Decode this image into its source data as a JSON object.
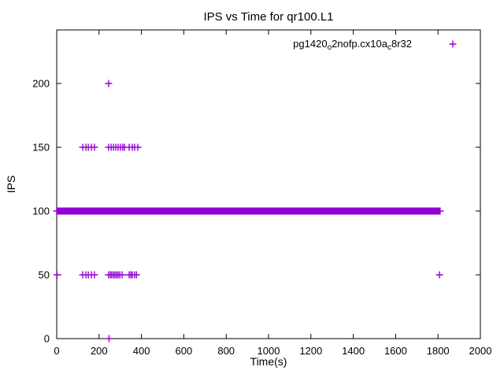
{
  "chart_data": {
    "type": "scatter",
    "title": "IPS vs Time for qr100.L1",
    "xlabel": "Time(s)",
    "ylabel": "IPS",
    "xlim": [
      0,
      2000
    ],
    "ylim": [
      0,
      242
    ],
    "xticks": [
      0,
      200,
      400,
      600,
      800,
      1000,
      1200,
      1400,
      1600,
      1800,
      2000
    ],
    "yticks": [
      0,
      50,
      100,
      150,
      200
    ],
    "grid": false,
    "tick_style": "inward-mirrored",
    "legend_position": "top-right-inside",
    "background_color": "#ffffff",
    "axis_color": "#000000",
    "series": [
      {
        "name": "pg1420_o2nofp.cx10a_c8r32",
        "label_segments": [
          {
            "text": "pg1420"
          },
          {
            "sub": "o"
          },
          {
            "text": "2nofp.cx10a"
          },
          {
            "sub": "c"
          },
          {
            "text": "8r32"
          }
        ],
        "color": "#9400D3",
        "marker": "plus",
        "steady_band": {
          "y": 100,
          "x_start": 0,
          "x_end": 1810,
          "sample_step": 4
        },
        "points": [
          [
            2,
            50
          ],
          [
            123,
            150
          ],
          [
            138,
            150
          ],
          [
            149,
            150
          ],
          [
            164,
            150
          ],
          [
            178,
            150
          ],
          [
            245,
            150
          ],
          [
            257,
            150
          ],
          [
            268,
            150
          ],
          [
            279,
            150
          ],
          [
            290,
            150
          ],
          [
            301,
            150
          ],
          [
            312,
            150
          ],
          [
            320,
            150
          ],
          [
            342,
            150
          ],
          [
            357,
            150
          ],
          [
            368,
            150
          ],
          [
            383,
            150
          ],
          [
            123,
            50
          ],
          [
            138,
            50
          ],
          [
            149,
            50
          ],
          [
            164,
            50
          ],
          [
            178,
            50
          ],
          [
            245,
            50
          ],
          [
            253,
            50
          ],
          [
            260,
            50
          ],
          [
            268,
            50
          ],
          [
            275,
            50
          ],
          [
            283,
            50
          ],
          [
            290,
            50
          ],
          [
            298,
            50
          ],
          [
            309,
            50
          ],
          [
            342,
            50
          ],
          [
            350,
            50
          ],
          [
            357,
            50
          ],
          [
            368,
            50
          ],
          [
            377,
            50
          ],
          [
            245,
            200
          ],
          [
            247,
            0
          ],
          [
            1807,
            50
          ]
        ]
      }
    ]
  }
}
